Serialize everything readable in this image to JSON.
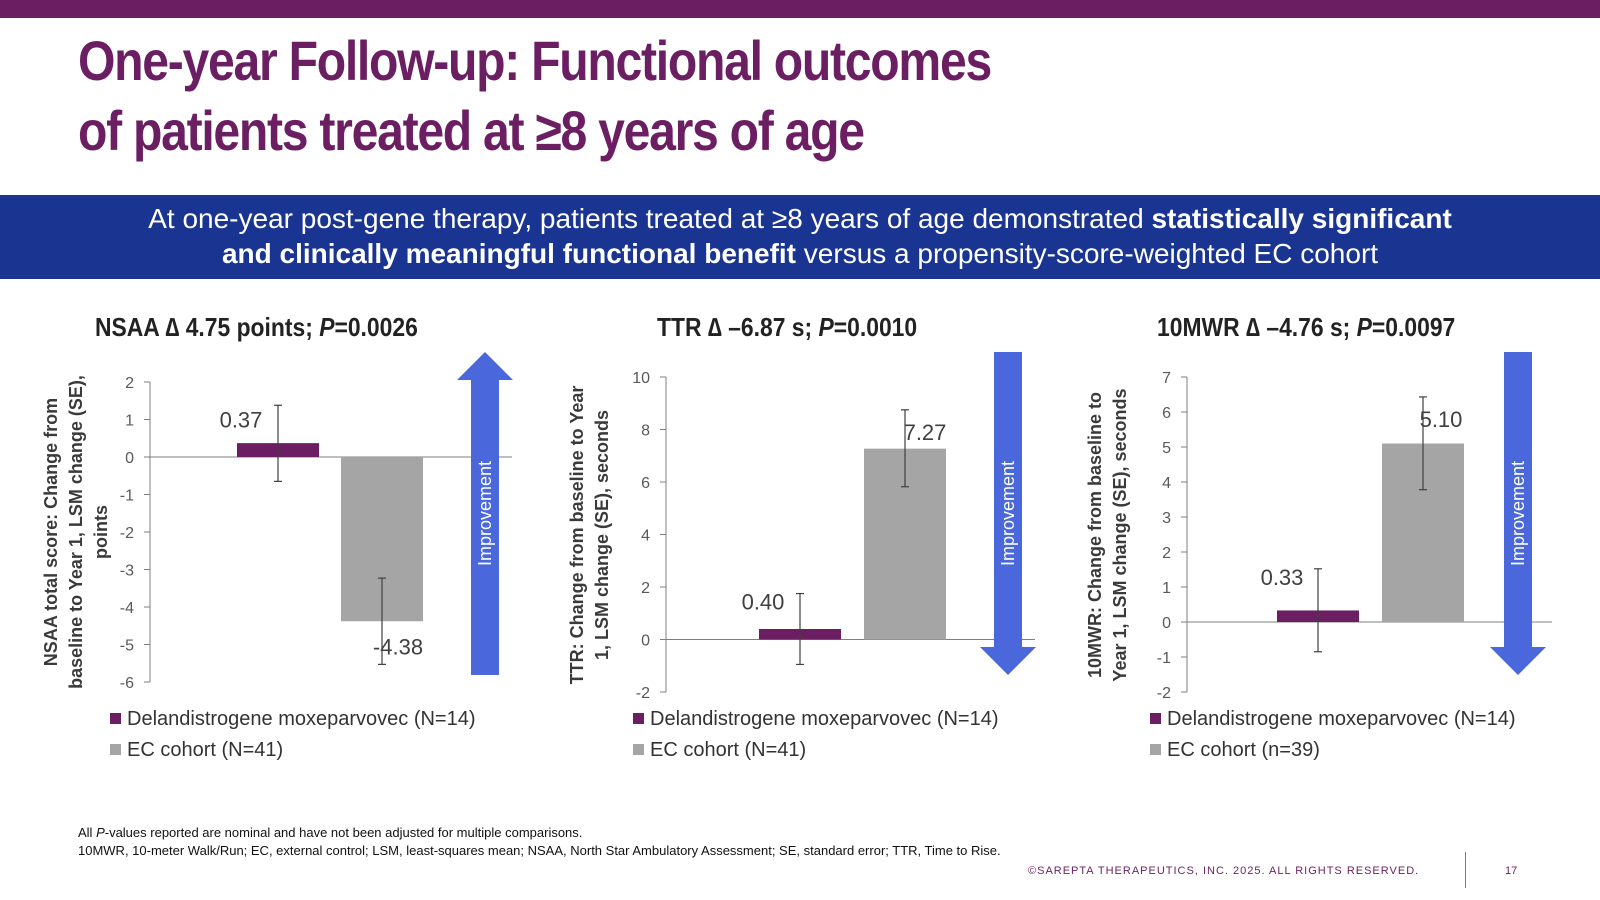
{
  "slide": {
    "title_line1": "One-year Follow-up: Functional outcomes",
    "title_line2": "of patients treated at ≥8 years of age",
    "banner": {
      "part1": "At one-year post-gene therapy, patients treated at ≥8 years of age demonstrated ",
      "bold1": "statistically significant",
      "bold2": "and clinically meaningful functional benefit",
      "part2": " versus a propensity-score-weighted EC cohort"
    },
    "footnote1_pre": "All ",
    "footnote1_italic": "P",
    "footnote1_post": "-values reported are nominal and have not been adjusted for multiple comparisons.",
    "footnote2": "10MWR, 10-meter Walk/Run; EC, external control; LSM, least-squares mean; NSAA, North Star Ambulatory Assessment; SE, standard error; TTR, Time to Rise.",
    "copyright": "©SAREPTA THERAPEUTICS, INC. 2025.  ALL RIGHTS RESERVED.",
    "page_number": "17"
  },
  "colors": {
    "brand_purple": "#6b1f62",
    "banner_blue": "#1a3491",
    "treatment_bar": "#6b1f62",
    "ec_bar": "#a5a5a5",
    "arrow_blue": "#4a67dc"
  },
  "chart_data": [
    {
      "type": "bar",
      "title_prefix": "NSAA ∆ 4.75 points; ",
      "title_p": "P",
      "title_suffix": "=0.0026",
      "ylabel": "NSAA total score: Change from baseline to Year 1, LSM change (SE), points",
      "ylim": [
        -6,
        2
      ],
      "yticks": [
        2,
        1,
        0,
        -1,
        -2,
        -3,
        -4,
        -5,
        -6
      ],
      "grid": false,
      "series": [
        {
          "name": "Delandistrogene moxeparvovec (N=14)",
          "value": 0.37,
          "label": "0.37",
          "err_low": -0.65,
          "err_high": 1.38
        },
        {
          "name": "EC cohort (N=41)",
          "value": -4.38,
          "label": "-4.38",
          "err_low": -5.53,
          "err_high": -3.23
        }
      ],
      "arrow": {
        "label": "Improvement",
        "direction": "up"
      },
      "legend_position": "bottom-left"
    },
    {
      "type": "bar",
      "title_prefix": "TTR ∆ –6.87 s; ",
      "title_p": "P",
      "title_suffix": "=0.0010",
      "ylabel": "TTR: Change from baseline to Year 1, LSM change (SE), seconds",
      "ylim": [
        -2,
        10
      ],
      "yticks": [
        10,
        8,
        6,
        4,
        2,
        0,
        -2
      ],
      "grid": false,
      "series": [
        {
          "name": "Delandistrogene moxeparvovec (N=14)",
          "value": 0.4,
          "label": "0.40",
          "err_low": -0.95,
          "err_high": 1.75
        },
        {
          "name": "EC cohort (N=41)",
          "value": 7.27,
          "label": "7.27",
          "err_low": 5.82,
          "err_high": 8.75
        }
      ],
      "arrow": {
        "label": "Improvement",
        "direction": "down"
      },
      "legend_position": "bottom-left"
    },
    {
      "type": "bar",
      "title_prefix": "10MWR ∆ –4.76 s; ",
      "title_p": "P",
      "title_suffix": "=0.0097",
      "ylabel": "10MWR: Change from baseline to Year 1, LSM change (SE), seconds",
      "ylim": [
        -2,
        7
      ],
      "yticks": [
        7,
        6,
        5,
        4,
        3,
        2,
        1,
        0,
        -1,
        -2
      ],
      "grid": false,
      "series": [
        {
          "name": "Delandistrogene moxeparvovec (N=14)",
          "value": 0.33,
          "label": "0.33",
          "err_low": -0.85,
          "err_high": 1.52
        },
        {
          "name": "EC cohort (n=39)",
          "value": 5.1,
          "label": "5.10",
          "err_low": 3.78,
          "err_high": 6.43
        }
      ],
      "arrow": {
        "label": "Improvement",
        "direction": "down"
      },
      "legend_position": "bottom-left"
    }
  ]
}
